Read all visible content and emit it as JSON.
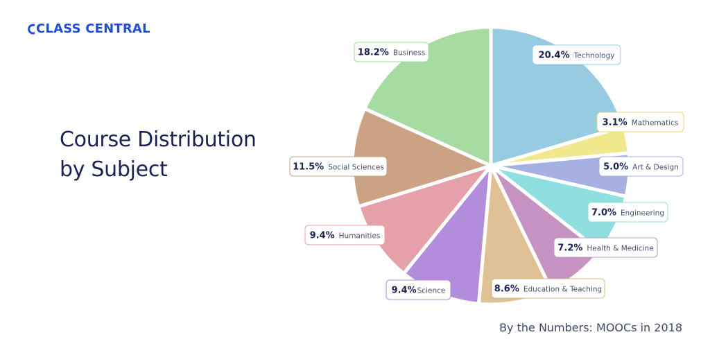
{
  "brand": {
    "name": "CLASS CENTRAL",
    "color": "#1f4fd8",
    "logo_icon": "class-central-logo-icon"
  },
  "heading": {
    "line1": "Course Distribution",
    "line2": "by Subject"
  },
  "footer": {
    "text": "By the Numbers: MOOCs in 2018"
  },
  "chart_data": {
    "type": "pie",
    "title": "",
    "slices": [
      {
        "pct_label": "20.4%",
        "label": "Technology",
        "value": 20.4,
        "color": "#96cbe2",
        "text_color": "#96cbe2"
      },
      {
        "pct_label": "3.1%",
        "label": "Mathematics",
        "value": 3.1,
        "color": "#efe88c",
        "text_color": "#e3da6a"
      },
      {
        "pct_label": "5.0%",
        "label": "Art & Design",
        "value": 5.0,
        "color": "#a7b0e3",
        "text_color": "#a7b0e3"
      },
      {
        "pct_label": "7.0%",
        "label": "Engineering",
        "value": 7.0,
        "color": "#8fdfe0",
        "text_color": "#8fdfe0"
      },
      {
        "pct_label": "7.2%",
        "label": "Health & Medicine",
        "value": 7.2,
        "color": "#c592c1",
        "text_color": "#c592c1"
      },
      {
        "pct_label": "8.6%",
        "label": "Education & Teaching",
        "value": 8.6,
        "color": "#e0c196",
        "text_color": "#d9b986"
      },
      {
        "pct_label": "9.4%",
        "label": "Science",
        "value": 9.4,
        "color": "#b28ddb",
        "text_color": "#b28ddb"
      },
      {
        "pct_label": "9.4%",
        "label": "Humanities",
        "value": 9.4,
        "color": "#e6a0a9",
        "text_color": "#e6a0a9"
      },
      {
        "pct_label": "11.5%",
        "label": "Social Sciences",
        "value": 11.5,
        "color": "#cba283",
        "text_color": "#cba283"
      },
      {
        "pct_label": "18.2%",
        "label": "Business",
        "value": 18.2,
        "color": "#a6dba2",
        "text_color": "#a6dba2"
      }
    ]
  }
}
